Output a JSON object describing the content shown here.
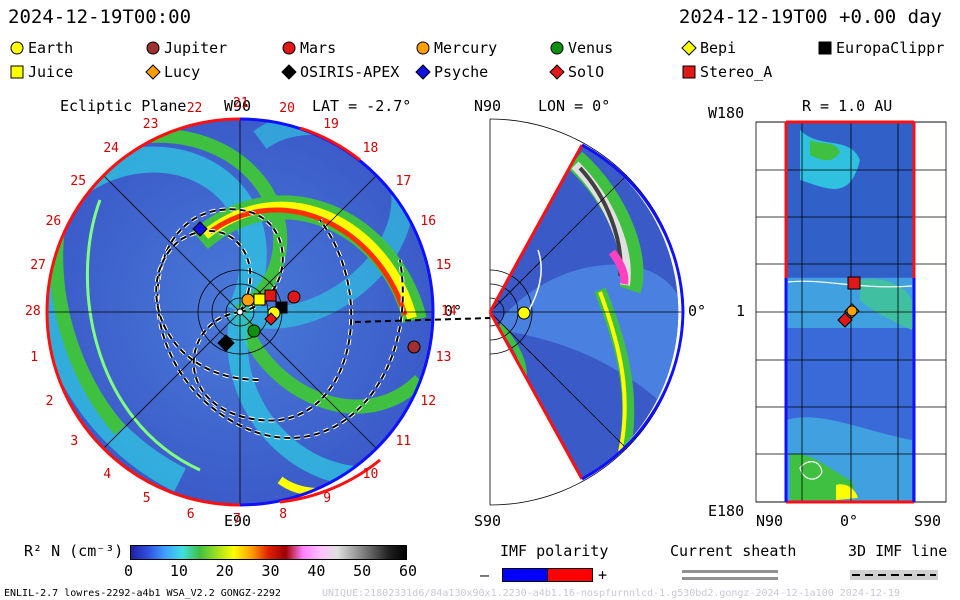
{
  "header": {
    "left_time": "2024-12-19T00:00",
    "right_time": "2024-12-19T00 +0.00 day"
  },
  "legend": {
    "row1": [
      {
        "label": "Earth",
        "marker": "circle",
        "color": "#ffff00"
      },
      {
        "label": "Jupiter",
        "marker": "circle",
        "color": "#a03030"
      },
      {
        "label": "Mars",
        "marker": "circle",
        "color": "#e01818"
      },
      {
        "label": "Mercury",
        "marker": "circle",
        "color": "#ffa000"
      },
      {
        "label": "Venus",
        "marker": "circle",
        "color": "#109010"
      },
      {
        "label": "Bepi",
        "marker": "diamond",
        "color": "#ffff00"
      },
      {
        "label": "EuropaClippr",
        "marker": "square",
        "color": "#000000"
      }
    ],
    "row2": [
      {
        "label": "Juice",
        "marker": "square",
        "color": "#ffff00"
      },
      {
        "label": "Lucy",
        "marker": "diamond",
        "color": "#ffa000"
      },
      {
        "label": "OSIRIS-APEX",
        "marker": "diamond",
        "color": "#000000"
      },
      {
        "label": "Psyche",
        "marker": "diamond",
        "color": "#1010e0"
      },
      {
        "label": "SolO",
        "marker": "diamond",
        "color": "#e01818"
      },
      {
        "label": "Stereo_A",
        "marker": "square",
        "color": "#e01818"
      }
    ]
  },
  "ecliptic": {
    "title": "Ecliptic Plane",
    "lat_label": "LAT = -2.7°",
    "top_label": "W90",
    "bottom_label": "E90",
    "zero_label": "0°",
    "hours": [
      "1",
      "2",
      "3",
      "4",
      "5",
      "6",
      "7",
      "8",
      "9",
      "10",
      "11",
      "12",
      "13",
      "14",
      "15",
      "16",
      "17",
      "18",
      "19",
      "20",
      "21",
      "22",
      "23",
      "24",
      "25",
      "26",
      "27",
      "28"
    ]
  },
  "meridional": {
    "top_label": "N90",
    "bottom_label": "S90",
    "lon_label": "LON = 0°",
    "zero_label": "0°"
  },
  "radial": {
    "title": "R = 1.0 AU",
    "top_left": "W180",
    "bottom_left": "E180",
    "mid_left": "1",
    "x_left": "N90",
    "x_mid": "0°",
    "x_right": "S90"
  },
  "colorbar": {
    "label": "R² N (cm⁻³)",
    "ticks": [
      "0",
      "10",
      "20",
      "30",
      "40",
      "50",
      "60"
    ],
    "stops": [
      "#2020a0",
      "#3050e0",
      "#40a0ff",
      "#40e0e0",
      "#40c040",
      "#a0e020",
      "#ffff00",
      "#ffa000",
      "#e02000",
      "#a00000",
      "#ff80ff",
      "#ffc0ff",
      "#e0e0e0",
      "#a0a0a0",
      "#606060",
      "#202020",
      "#000000"
    ]
  },
  "imf": {
    "title": "IMF polarity",
    "minus": "–",
    "plus": "+",
    "neg_color": "#0000ff",
    "pos_color": "#ff0000"
  },
  "sheath": {
    "title": "Current sheath"
  },
  "imf3d": {
    "title": "3D IMF line"
  },
  "footer": {
    "left": "ENLIL-2.7 lowres-2292-a4b1 WSA_V2.2 GONGZ-2292",
    "right": "UNIQUE:21802331d6/84a130x90x1.2230-a4b1.16-nospfurnnlcd-1.g530bd2.gongz-2024-12-1a100   2024-12-19"
  }
}
